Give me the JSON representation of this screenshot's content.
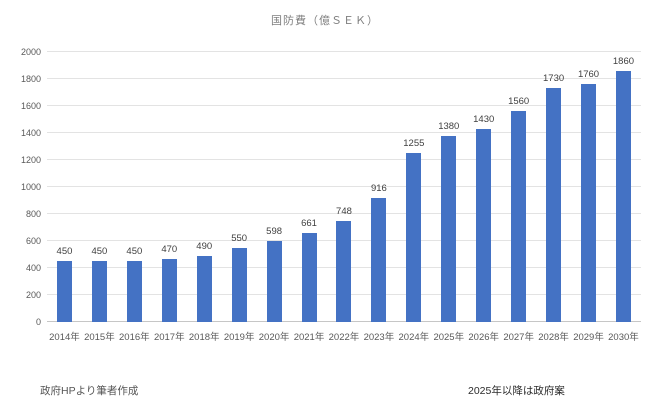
{
  "title": "国防費（億ＳＥＫ）",
  "footer_left": "政府HPより筆者作成",
  "footer_right": "2025年以降は政府案",
  "colors": {
    "bar": "#4472C4",
    "gridline": "#E3E3E3",
    "axis": "#C6C6C6",
    "title": "#7F7F7F",
    "tick": "#595959",
    "label": "#3F3F3F",
    "footer_left_color": "#555555",
    "footer_right_color": "#2B2B2B"
  },
  "chart_data": {
    "type": "bar",
    "title": "国防費（億ＳＥＫ）",
    "categories": [
      "2014年",
      "2015年",
      "2016年",
      "2017年",
      "2018年",
      "2019年",
      "2020年",
      "2021年",
      "2022年",
      "2023年",
      "2024年",
      "2025年",
      "2026年",
      "2027年",
      "2028年",
      "2029年",
      "2030年"
    ],
    "values": [
      450,
      450,
      450,
      470,
      490,
      550,
      598,
      661,
      748,
      916,
      1255,
      1380,
      1430,
      1560,
      1730,
      1760,
      1860
    ],
    "xlabel": "",
    "ylabel": "",
    "ylim": [
      0,
      2000
    ],
    "ytick_step": 200,
    "grid": true,
    "data_labels": true,
    "legend": "none",
    "annotations": [
      "政府HPより筆者作成",
      "2025年以降は政府案"
    ]
  }
}
